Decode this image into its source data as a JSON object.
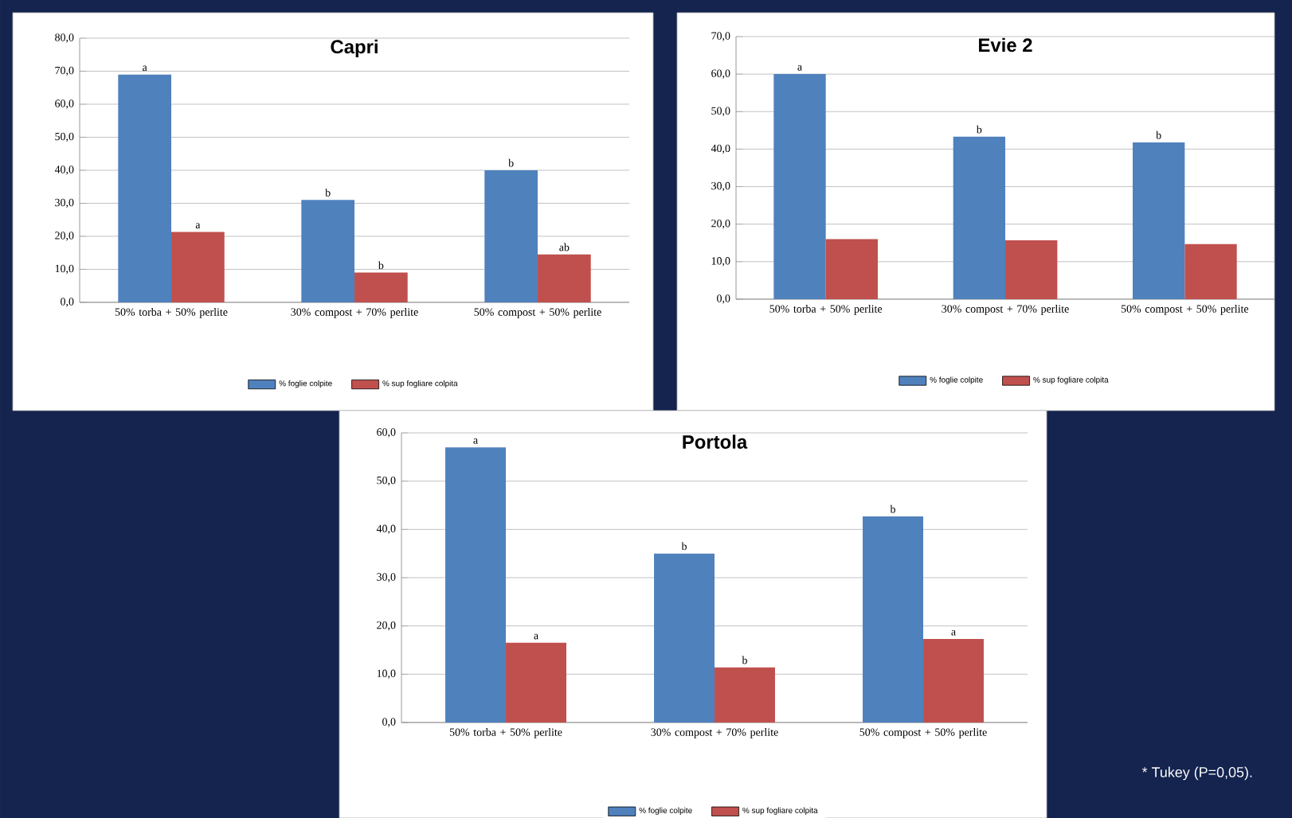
{
  "chart_data": [
    {
      "type": "bar",
      "title": "Capri",
      "categories": [
        "50% torba + 50% perlite",
        "30% compost + 70% perlite",
        "50% compost + 50% perlite"
      ],
      "series": [
        {
          "name": "% foglie colpite",
          "color": "#4f81bd",
          "values": [
            69.0,
            31.0,
            40.0
          ],
          "value_labels": [
            "a",
            "b",
            "b"
          ]
        },
        {
          "name": "% sup fogliare colpita",
          "color": "#c0504d",
          "values": [
            21.3,
            9.0,
            14.5
          ],
          "value_labels": [
            "a",
            "b",
            "ab"
          ]
        }
      ],
      "ylim": [
        0,
        80
      ],
      "yticks": [
        {
          "value": 0,
          "label": "0,0"
        },
        {
          "value": 10,
          "label": "10,0"
        },
        {
          "value": 20,
          "label": "20,0"
        },
        {
          "value": 30,
          "label": "30,0"
        },
        {
          "value": 40,
          "label": "40,0"
        },
        {
          "value": 50,
          "label": "50,0"
        },
        {
          "value": 60,
          "label": "60,0"
        },
        {
          "value": 70,
          "label": "70,0"
        },
        {
          "value": 80,
          "label": "80,0"
        }
      ],
      "grid": "y",
      "legend": "bottom"
    },
    {
      "type": "bar",
      "title": "Evie 2",
      "categories": [
        "50% torba + 50% perlite",
        "30% compost + 70% perlite",
        "50% compost + 50% perlite"
      ],
      "series": [
        {
          "name": "% foglie colpite",
          "color": "#4f81bd",
          "values": [
            60.0,
            43.3,
            41.8
          ],
          "value_labels": [
            "a",
            "b",
            "b"
          ]
        },
        {
          "name": "% sup fogliare colpita",
          "color": "#c0504d",
          "values": [
            16.0,
            15.7,
            14.7
          ]
        }
      ],
      "ylim": [
        0,
        70
      ],
      "yticks": [
        {
          "value": 0,
          "label": "0,0"
        },
        {
          "value": 10,
          "label": "10,0"
        },
        {
          "value": 20,
          "label": "20,0"
        },
        {
          "value": 30,
          "label": "30,0"
        },
        {
          "value": 40,
          "label": "40,0"
        },
        {
          "value": 50,
          "label": "50,0"
        },
        {
          "value": 60,
          "label": "60,0"
        },
        {
          "value": 70,
          "label": "70,0"
        }
      ],
      "grid": "y",
      "legend": "bottom"
    },
    {
      "type": "bar",
      "title": "Portola",
      "categories": [
        "50% torba + 50% perlite",
        "30% compost + 70% perlite",
        "50% compost + 50% perlite"
      ],
      "series": [
        {
          "name": "% foglie colpite",
          "color": "#4f81bd",
          "values": [
            57.0,
            35.0,
            42.7
          ],
          "value_labels": [
            "a",
            "b",
            "b"
          ]
        },
        {
          "name": "% sup fogliare colpita",
          "color": "#c0504d",
          "values": [
            16.5,
            11.4,
            17.3
          ],
          "value_labels": [
            "a",
            "b",
            "a"
          ]
        }
      ],
      "ylim": [
        0,
        60
      ],
      "yticks": [
        {
          "value": 0,
          "label": "0,0"
        },
        {
          "value": 10,
          "label": "10,0"
        },
        {
          "value": 20,
          "label": "20,0"
        },
        {
          "value": 30,
          "label": "30,0"
        },
        {
          "value": 40,
          "label": "40,0"
        },
        {
          "value": 50,
          "label": "50,0"
        },
        {
          "value": 60,
          "label": "60,0"
        }
      ],
      "grid": "y",
      "legend": "bottom",
      "annotations": [
        "* Tukey (P=0,05)."
      ]
    }
  ]
}
